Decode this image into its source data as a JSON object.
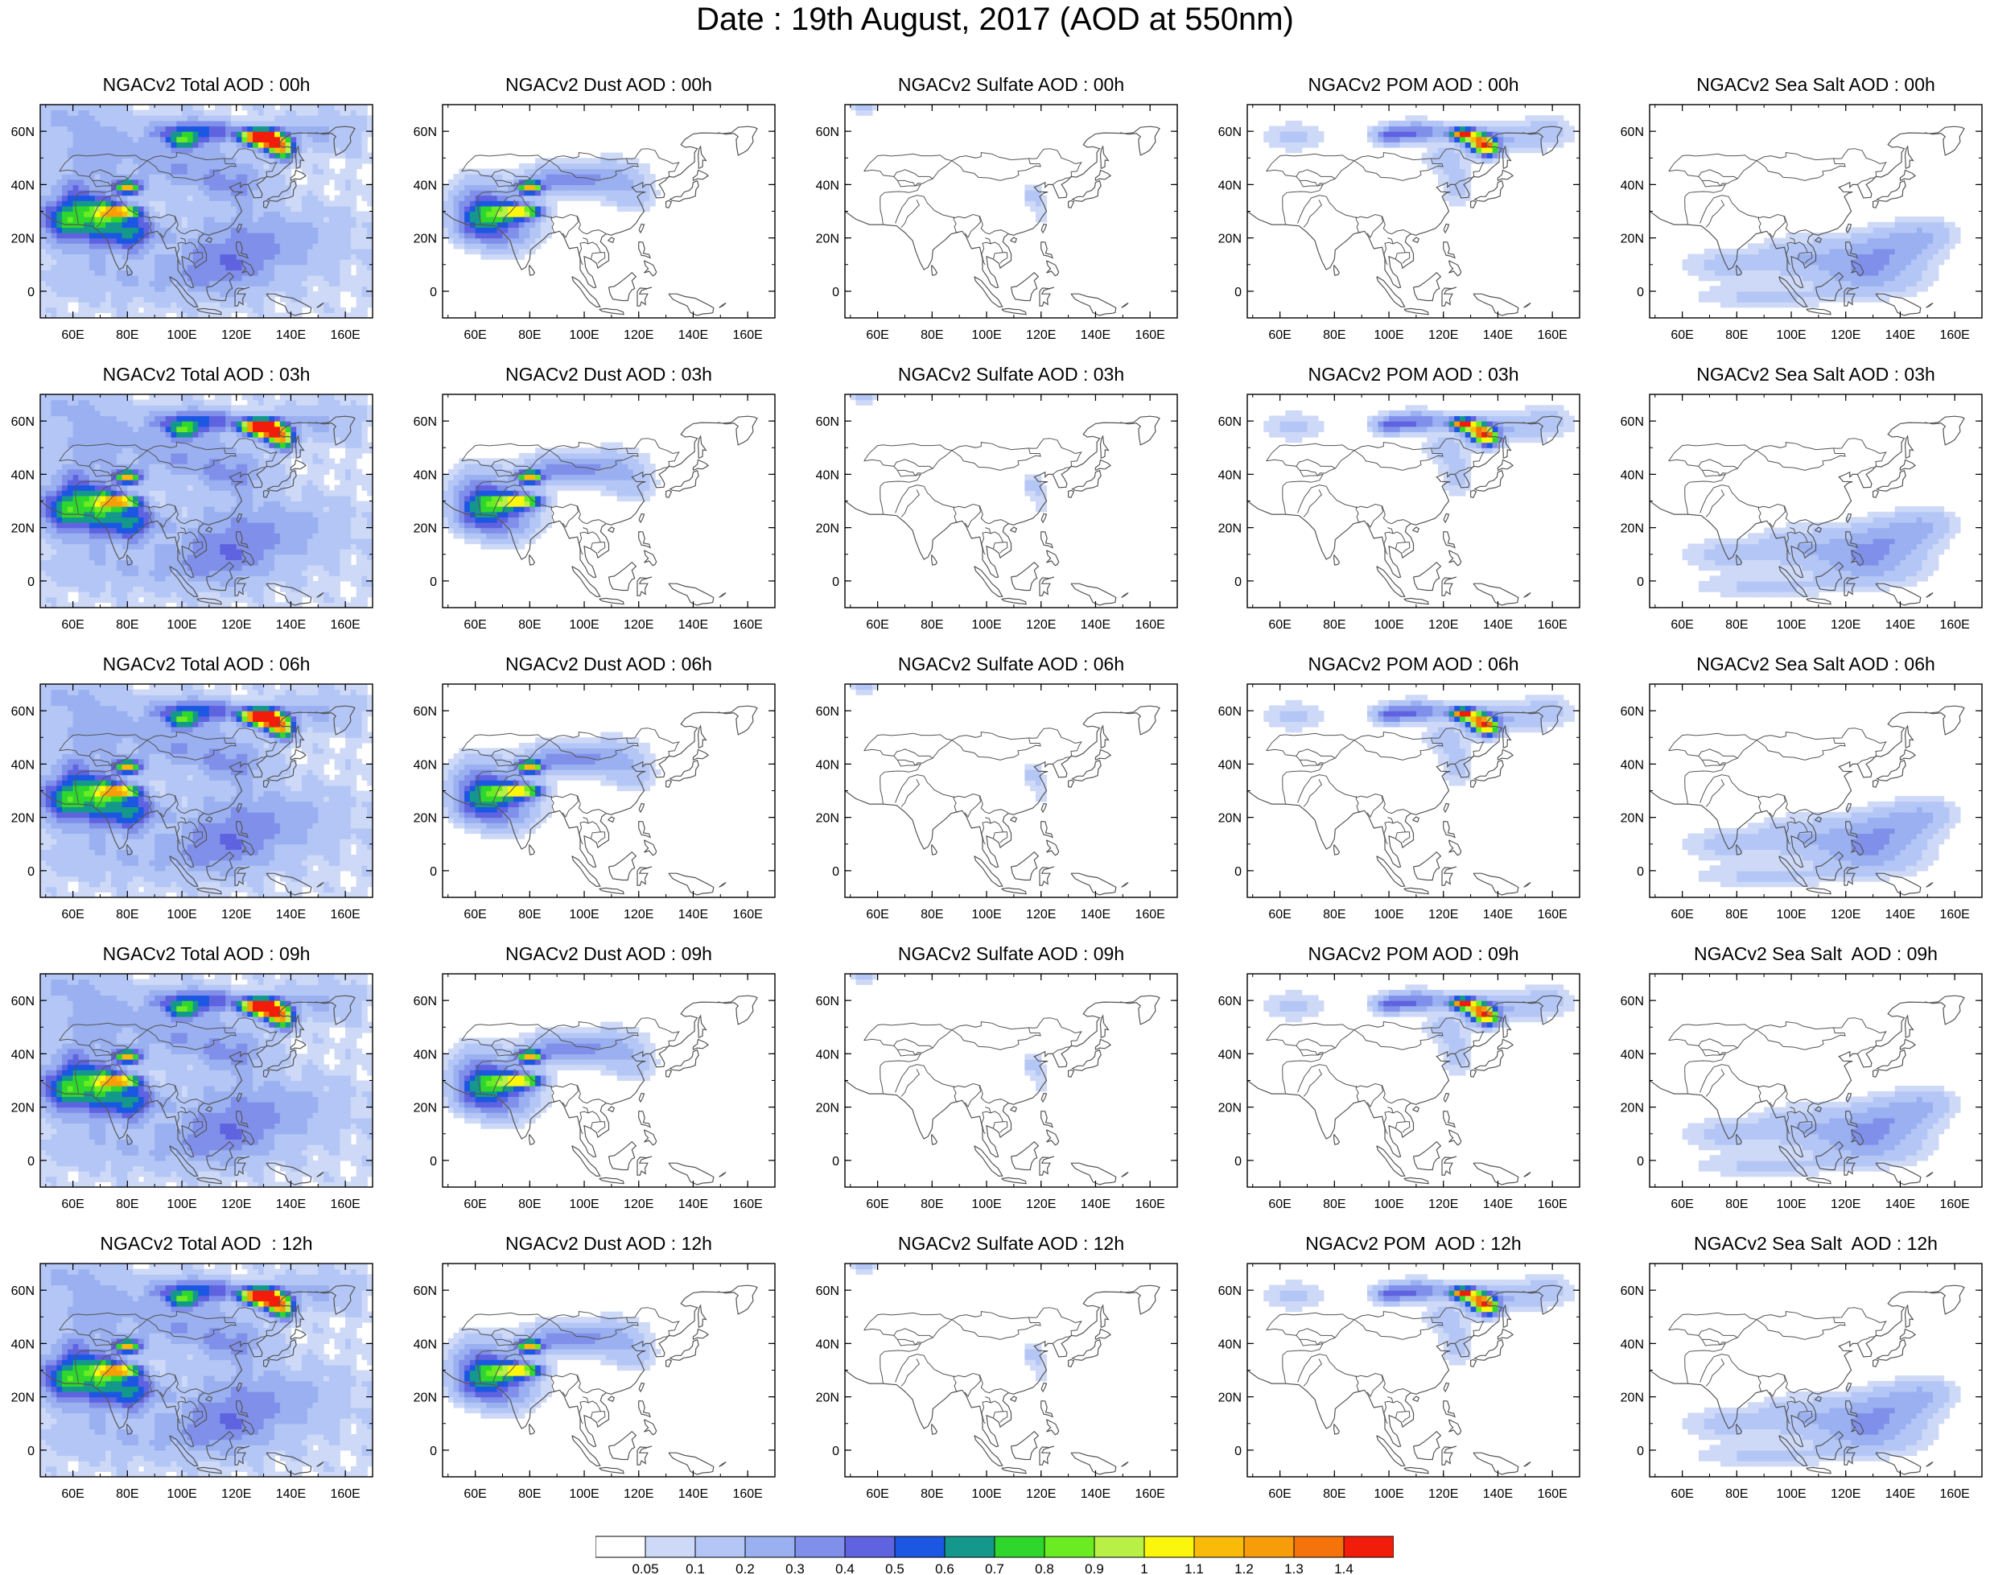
{
  "title": "Date : 19th August, 2017 (AOD at 550nm)",
  "x_ticks": [
    "60E",
    "80E",
    "100E",
    "120E",
    "140E",
    "160E"
  ],
  "x_tick_values": [
    60,
    80,
    100,
    120,
    140,
    160
  ],
  "y_ticks": [
    "0",
    "20N",
    "40N",
    "60N"
  ],
  "y_tick_values": [
    0,
    20,
    40,
    60
  ],
  "lon_range": [
    48,
    170
  ],
  "lat_range": [
    -10,
    70
  ],
  "colors": {
    "levels": [
      "#ffffff",
      "#cdd9f7",
      "#b4c6f5",
      "#9ab0f0",
      "#8090ea",
      "#5f63df",
      "#1b57e2",
      "#14988c",
      "#2fd72d",
      "#6bec22",
      "#b8f046",
      "#fbf70c",
      "#f9ba0a",
      "#f89d0a",
      "#f6730b",
      "#f21c0b"
    ],
    "coast": "#555555"
  },
  "colorbar": {
    "labels": [
      "0.05",
      "0.1",
      "0.2",
      "0.3",
      "0.4",
      "0.5",
      "0.6",
      "0.7",
      "0.8",
      "0.9",
      "1",
      "1.1",
      "1.2",
      "1.3",
      "1.4"
    ]
  },
  "panels": [
    {
      "title": "NGACv2 Total AOD : 00h",
      "species": "total"
    },
    {
      "title": "NGACv2 Dust AOD : 00h",
      "species": "dust"
    },
    {
      "title": "NGACv2 Sulfate AOD : 00h",
      "species": "sulfate"
    },
    {
      "title": "NGACv2 POM AOD : 00h",
      "species": "pom"
    },
    {
      "title": "NGACv2 Sea Salt AOD : 00h",
      "species": "seasalt"
    },
    {
      "title": "NGACv2 Total AOD : 03h",
      "species": "total"
    },
    {
      "title": "NGACv2 Dust AOD : 03h",
      "species": "dust"
    },
    {
      "title": "NGACv2 Sulfate AOD : 03h",
      "species": "sulfate"
    },
    {
      "title": "NGACv2 POM AOD : 03h",
      "species": "pom"
    },
    {
      "title": "NGACv2 Sea Salt AOD : 03h",
      "species": "seasalt"
    },
    {
      "title": "NGACv2 Total AOD : 06h",
      "species": "total"
    },
    {
      "title": "NGACv2 Dust AOD : 06h",
      "species": "dust"
    },
    {
      "title": "NGACv2 Sulfate AOD : 06h",
      "species": "sulfate"
    },
    {
      "title": "NGACv2 POM AOD : 06h",
      "species": "pom"
    },
    {
      "title": "NGACv2 Sea Salt AOD : 06h",
      "species": "seasalt"
    },
    {
      "title": "NGACv2 Total AOD : 09h",
      "species": "total"
    },
    {
      "title": "NGACv2 Dust AOD : 09h",
      "species": "dust"
    },
    {
      "title": "NGACv2 Sulfate AOD : 09h",
      "species": "sulfate"
    },
    {
      "title": "NGACv2 POM AOD : 09h",
      "species": "pom"
    },
    {
      "title": "NGACv2 Sea Salt  AOD : 09h",
      "species": "seasalt"
    },
    {
      "title": "NGACv2 Total AOD  : 12h",
      "species": "total"
    },
    {
      "title": "NGACv2 Dust AOD : 12h",
      "species": "dust"
    },
    {
      "title": "NGACv2 Sulfate AOD : 12h",
      "species": "sulfate"
    },
    {
      "title": "NGACv2 POM  AOD : 12h",
      "species": "pom"
    },
    {
      "title": "NGACv2 Sea Salt  AOD : 12h",
      "species": "seasalt"
    }
  ]
}
